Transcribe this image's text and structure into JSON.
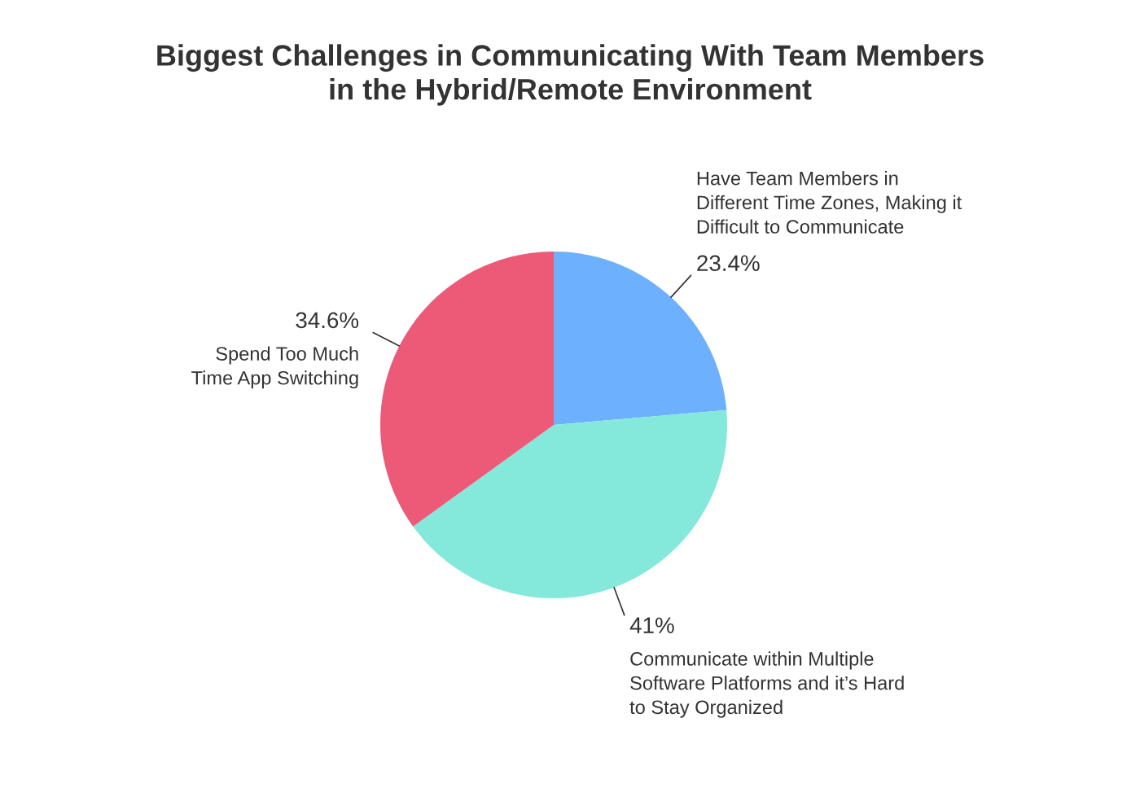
{
  "chart_data": {
    "type": "pie",
    "title": "Biggest Challenges in Communicating With Team Members\nin the Hybrid/Remote Environment",
    "categories": [
      "Have Team Members in\nDifferent Time Zones, Making it\nDifficult to Communicate",
      "Communicate within Multiple\nSoftware Platforms and it’s Hard\nto Stay Organized",
      "Spend Too Much\nTime App Switching"
    ],
    "values": [
      23.4,
      41,
      34.6
    ],
    "value_labels": [
      "23.4%",
      "41%",
      "34.6%"
    ],
    "colors": [
      "#6cb0fe",
      "#84e8da",
      "#ec5a78"
    ],
    "legend": false
  }
}
